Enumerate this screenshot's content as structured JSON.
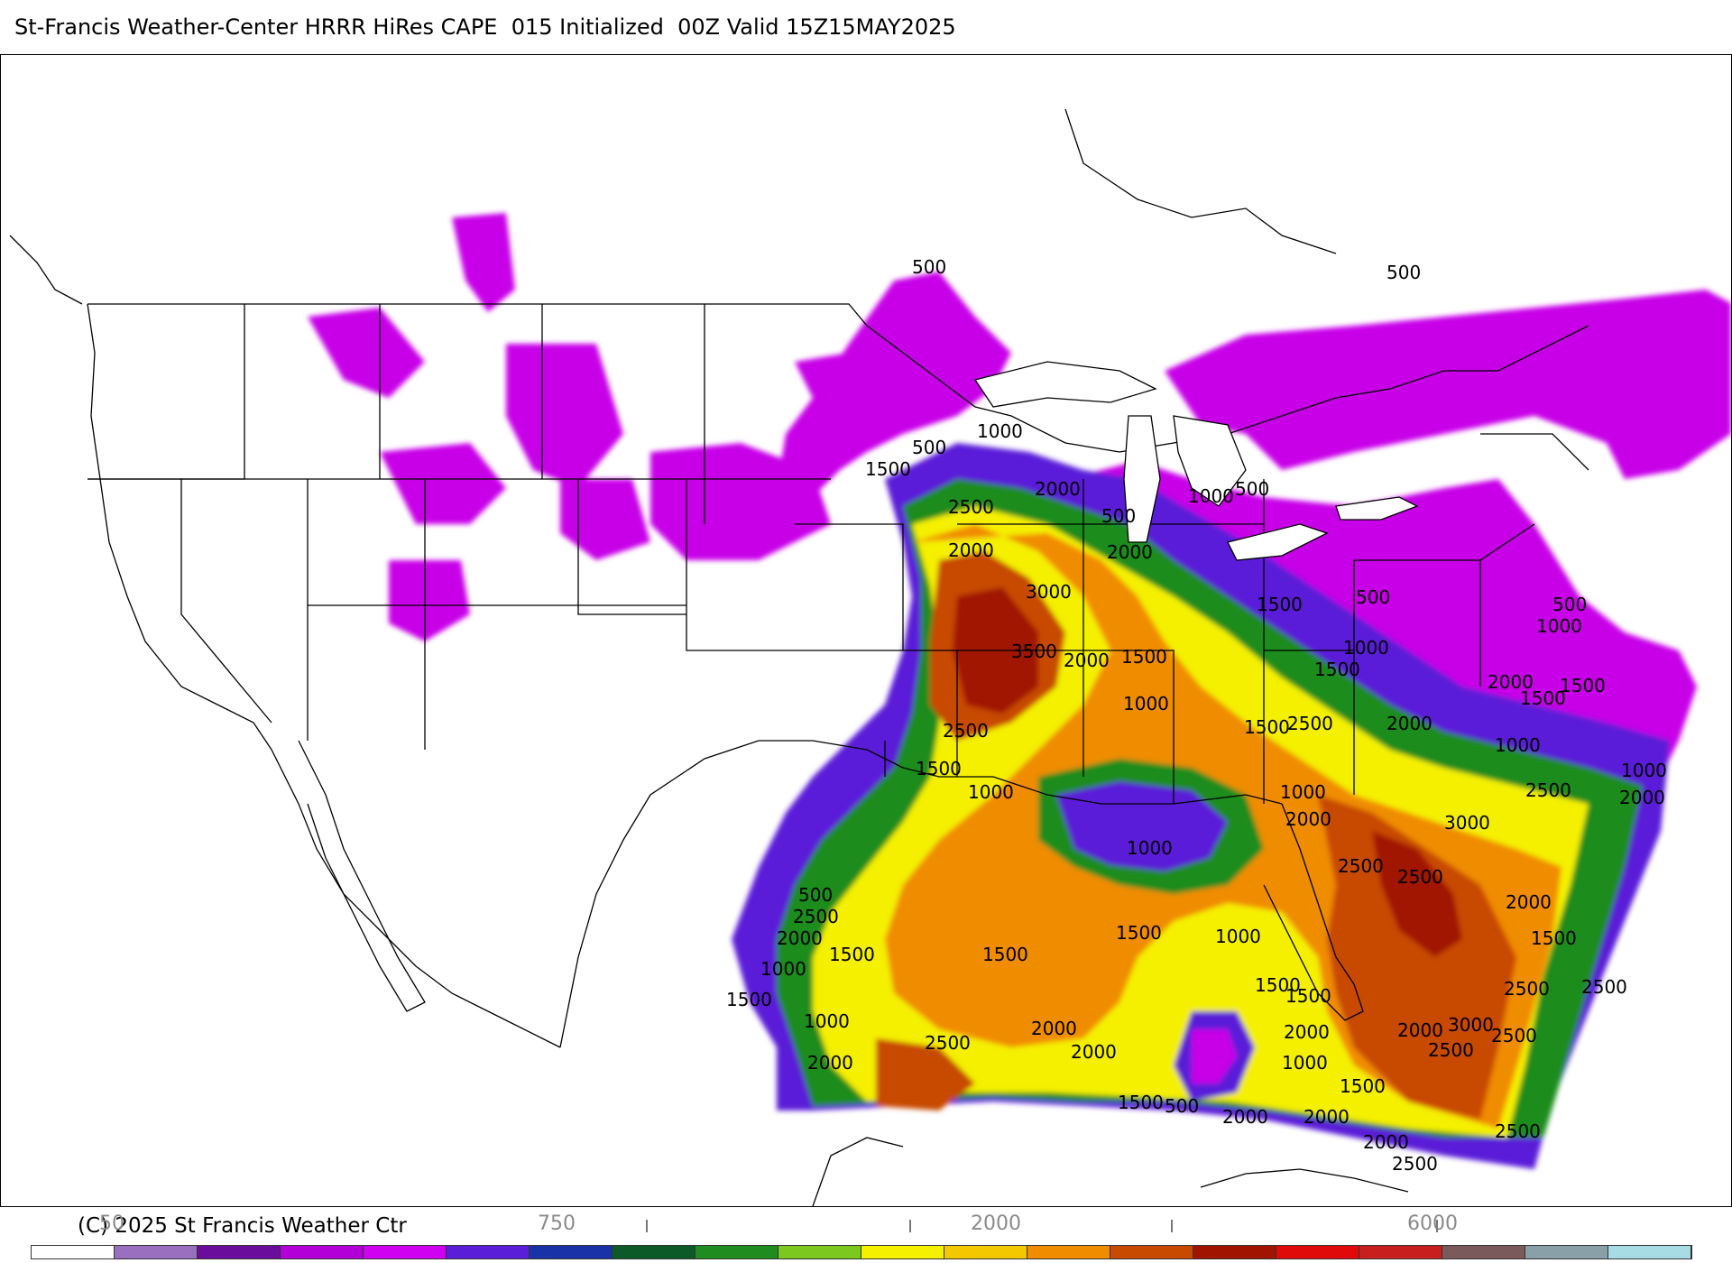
{
  "header": {
    "title": "St-Francis Weather-Center HRRR HiRes CAPE  015 Initialized  00Z Valid 15Z15MAY2025"
  },
  "footer": {
    "copyright": "(C) 2025 St Francis Weather Ctr"
  },
  "colorbar": {
    "labels": [
      "50",
      "750",
      "2000",
      "6000"
    ],
    "colors": [
      "#ffffff",
      "#9b6fbf",
      "#6a0c9c",
      "#b400d8",
      "#d000f0",
      "#5a1ed8",
      "#1a32a8",
      "#0c5a28",
      "#1e8c1e",
      "#7cc81e",
      "#f4f000",
      "#f4c800",
      "#f08c00",
      "#c84a00",
      "#a01400",
      "#e00a0a",
      "#c81e1e",
      "#7a5a5a",
      "#8aa0a8",
      "#a8dce4"
    ]
  },
  "map_labels": {
    "cape_contours": [
      "500",
      "1000",
      "1500",
      "2000",
      "2500",
      "3000",
      "3500"
    ]
  }
}
